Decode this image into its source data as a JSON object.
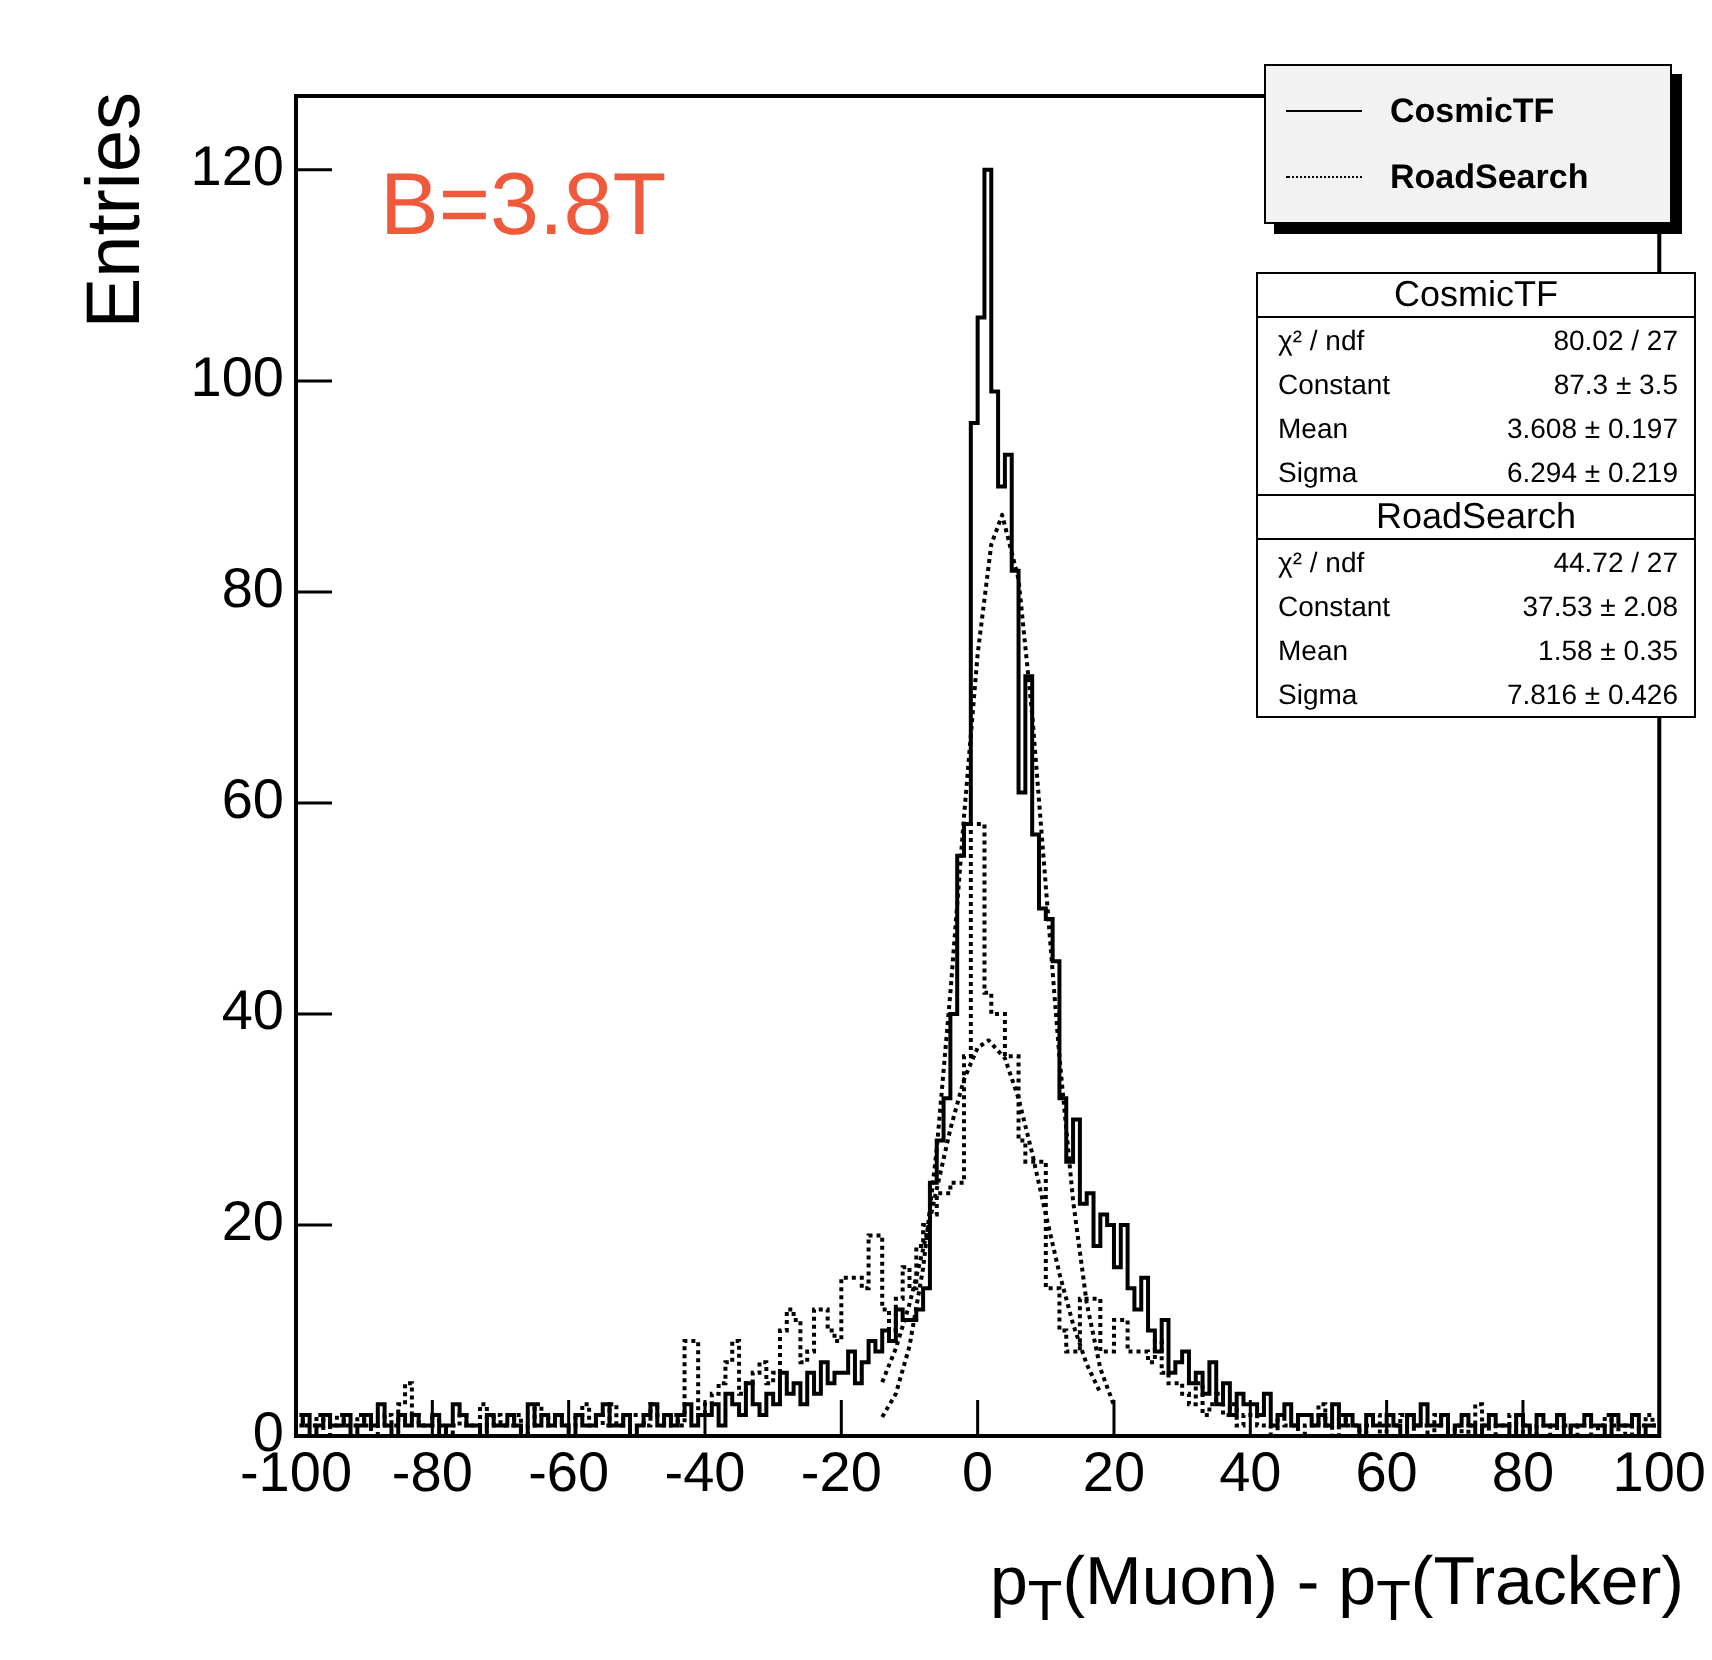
{
  "chart_data": {
    "type": "step",
    "xlabel": "p$_{T}$(Muon) - p$_{T}$(Tracker)",
    "ylabel": "Entries",
    "annotations": [
      "B=3.8T",
      "CosmicTF",
      "χ² / ndf\t80.02 / 27",
      "Constant\t87.3 ± 3.5",
      "Mean\t3.608 ± 0.197",
      "Sigma\t6.294 ± 0.219",
      "RoadSearch",
      "χ² / ndf\t44.72 / 27",
      "Constant\t37.53 ± 2.08",
      "Mean\t1.58 ± 0.35",
      "Sigma\t7.816 ± 0.426"
    ],
    "x": [
      -99.5,
      -98.5,
      -97.5,
      -96.5,
      -95.5,
      -94.5,
      -93.5,
      -92.5,
      -91.5,
      -90.5,
      -89.5,
      -88.5,
      -87.5,
      -86.5,
      -85.5,
      -84.5,
      -83.5,
      -82.5,
      -81.5,
      -80.5,
      -79.5,
      -78.5,
      -77.5,
      -76.5,
      -75.5,
      -74.5,
      -73.5,
      -72.5,
      -71.5,
      -70.5,
      -69.5,
      -68.5,
      -67.5,
      -66.5,
      -65.5,
      -64.5,
      -63.5,
      -62.5,
      -61.5,
      -60.5,
      -59.5,
      -58.5,
      -57.5,
      -56.5,
      -55.5,
      -54.5,
      -53.5,
      -52.5,
      -51.5,
      -50.5,
      -49.5,
      -48.5,
      -47.5,
      -46.5,
      -45.5,
      -44.5,
      -43.5,
      -42.5,
      -41.5,
      -40.5,
      -39.5,
      -38.5,
      -37.5,
      -36.5,
      -35.5,
      -34.5,
      -33.5,
      -32.5,
      -31.5,
      -30.5,
      -29.5,
      -28.5,
      -27.5,
      -26.5,
      -25.5,
      -24.5,
      -23.5,
      -22.5,
      -21.5,
      -20.5,
      -19.5,
      -18.5,
      -17.5,
      -16.5,
      -15.5,
      -14.5,
      -13.5,
      -12.5,
      -11.5,
      -10.5,
      -9.5,
      -8.5,
      -7.5,
      -6.5,
      -5.5,
      -4.5,
      -3.5,
      -2.5,
      -1.5,
      -0.5,
      0.5,
      1.5,
      2.5,
      3.5,
      4.5,
      5.5,
      6.5,
      7.5,
      8.5,
      9.5,
      10.5,
      11.5,
      12.5,
      13.5,
      14.5,
      15.5,
      16.5,
      17.5,
      18.5,
      19.5,
      20.5,
      21.5,
      22.5,
      23.5,
      24.5,
      25.5,
      26.5,
      27.5,
      28.5,
      29.5,
      30.5,
      31.5,
      32.5,
      33.5,
      34.5,
      35.5,
      36.5,
      37.5,
      38.5,
      39.5,
      40.5,
      41.5,
      42.5,
      43.5,
      44.5,
      45.5,
      46.5,
      47.5,
      48.5,
      49.5,
      50.5,
      51.5,
      52.5,
      53.5,
      54.5,
      55.5,
      56.5,
      57.5,
      58.5,
      59.5,
      60.5,
      61.5,
      62.5,
      63.5,
      64.5,
      65.5,
      66.5,
      67.5,
      68.5,
      69.5,
      70.5,
      71.5,
      72.5,
      73.5,
      74.5,
      75.5,
      76.5,
      77.5,
      78.5,
      79.5,
      80.5,
      81.5,
      82.5,
      83.5,
      84.5,
      85.5,
      86.5,
      87.5,
      88.5,
      89.5,
      90.5,
      91.5,
      92.5,
      93.5,
      94.5,
      95.5,
      96.5,
      97.5,
      98.5,
      99.5
    ],
    "series": [
      {
        "name": "CosmicTF",
        "color": "#000000",
        "line_style": "solid",
        "values": [
          1,
          2,
          0,
          1,
          2,
          1,
          1,
          2,
          0,
          1,
          2,
          1,
          3,
          1,
          0,
          2,
          1,
          2,
          1,
          1,
          2,
          0,
          1,
          3,
          2,
          1,
          1,
          0,
          2,
          1,
          1,
          2,
          1,
          0,
          3,
          1,
          2,
          1,
          2,
          1,
          0,
          2,
          1,
          1,
          2,
          3,
          1,
          1,
          2,
          0,
          1,
          2,
          3,
          1,
          2,
          1,
          2,
          3,
          1,
          2,
          2,
          3,
          1,
          4,
          3,
          2,
          5,
          3,
          2,
          4,
          3,
          6,
          4,
          5,
          3,
          6,
          4,
          7,
          5,
          6,
          6,
          8,
          5,
          7,
          9,
          8,
          10,
          9,
          12,
          11,
          11,
          12,
          14,
          24,
          28,
          32,
          40,
          55,
          58,
          96,
          106,
          120,
          99,
          90,
          93,
          82,
          61,
          72,
          57,
          50,
          49,
          45,
          32,
          26,
          30,
          22,
          23,
          18,
          21,
          20,
          16,
          20,
          14,
          12,
          15,
          10,
          8,
          11,
          6,
          7,
          8,
          5,
          6,
          4,
          7,
          3,
          5,
          2,
          4,
          3,
          3,
          2,
          4,
          1,
          2,
          3,
          1,
          2,
          2,
          1,
          2,
          1,
          3,
          1,
          2,
          1,
          0,
          2,
          1,
          1,
          2,
          1,
          0,
          2,
          1,
          3,
          1,
          1,
          2,
          0,
          1,
          2,
          1,
          0,
          1,
          2,
          1,
          1,
          0,
          2,
          1,
          0,
          2,
          1,
          1,
          2,
          0,
          1,
          1,
          2,
          1,
          1,
          0,
          2,
          1,
          1,
          2,
          0,
          1,
          1
        ]
      },
      {
        "name": "RoadSearch",
        "color": "#000000",
        "line_style": "dotted",
        "values": [
          2,
          1,
          1,
          2,
          0,
          1,
          2,
          1,
          1,
          2,
          1,
          0,
          1,
          2,
          1,
          3,
          5,
          2,
          1,
          1,
          2,
          1,
          0,
          1,
          2,
          1,
          1,
          3,
          1,
          2,
          1,
          1,
          2,
          0,
          1,
          3,
          2,
          1,
          2,
          1,
          1,
          2,
          3,
          1,
          2,
          1,
          3,
          1,
          2,
          2,
          2,
          1,
          3,
          2,
          1,
          2,
          1,
          9,
          9,
          2,
          3,
          4,
          5,
          7,
          9,
          4,
          5,
          6,
          7,
          5,
          6,
          10,
          12,
          11,
          7,
          8,
          12,
          12,
          10,
          9,
          15,
          15,
          15,
          14,
          19,
          19,
          12,
          10,
          13,
          16,
          14,
          18,
          20,
          21,
          23,
          23,
          24,
          24,
          36,
          58,
          58,
          42,
          40,
          40,
          36,
          36,
          28,
          26,
          26,
          26,
          14,
          14,
          10,
          8,
          8,
          13,
          13,
          13,
          8,
          8,
          11,
          11,
          8,
          8,
          8,
          7,
          9,
          6,
          5,
          5,
          4,
          3,
          5,
          2,
          3,
          4,
          2,
          3,
          1,
          2,
          2,
          1,
          1,
          0,
          2,
          1,
          1,
          0,
          1,
          1,
          3,
          1,
          0,
          2,
          1,
          1,
          0,
          1,
          2,
          0,
          1,
          1,
          2,
          0,
          1,
          1,
          0,
          2,
          1,
          0,
          1,
          0,
          1,
          3,
          1,
          0,
          1,
          1,
          2,
          0,
          1,
          0,
          1,
          1,
          0,
          2,
          1,
          0,
          1,
          1,
          0,
          1,
          2,
          1,
          0,
          1,
          0,
          1,
          2,
          1
        ]
      },
      {
        "type": "line",
        "color": "#000000",
        "line_style": "dotted",
        "x": [
          -14,
          -12,
          -10,
          -8,
          -6,
          -4,
          -2,
          0,
          2,
          3.6,
          6,
          8,
          10,
          12,
          14,
          16,
          18,
          20
        ],
        "values": [
          1.8,
          4,
          8.5,
          15.9,
          27.2,
          42,
          58.7,
          74.1,
          84.5,
          87.3,
          81.2,
          68.4,
          52.1,
          35.9,
          22.3,
          12.6,
          6.4,
          2.9
        ]
      },
      {
        "type": "line",
        "color": "#000000",
        "line_style": "dotted",
        "x": [
          -14,
          -12,
          -10,
          -8,
          -6,
          -4,
          -2,
          0,
          1.6,
          4,
          6,
          8,
          10,
          12,
          14,
          16,
          18
        ],
        "values": [
          5.1,
          8.3,
          12.5,
          17.7,
          23.4,
          29.1,
          33.8,
          36.8,
          37.5,
          35.8,
          32,
          26.8,
          21,
          15.4,
          10.6,
          6.8,
          4.1
        ]
      }
    ],
    "xlim": [
      -100,
      100
    ],
    "ylim": [
      0,
      127
    ],
    "xticks": [
      -100,
      -80,
      -60,
      -40,
      -20,
      0,
      20,
      40,
      60,
      80,
      100
    ],
    "yticks": [
      0,
      20,
      40,
      60,
      80,
      100,
      120
    ],
    "legend": "top right",
    "marker": "none",
    "grid": false
  }
}
